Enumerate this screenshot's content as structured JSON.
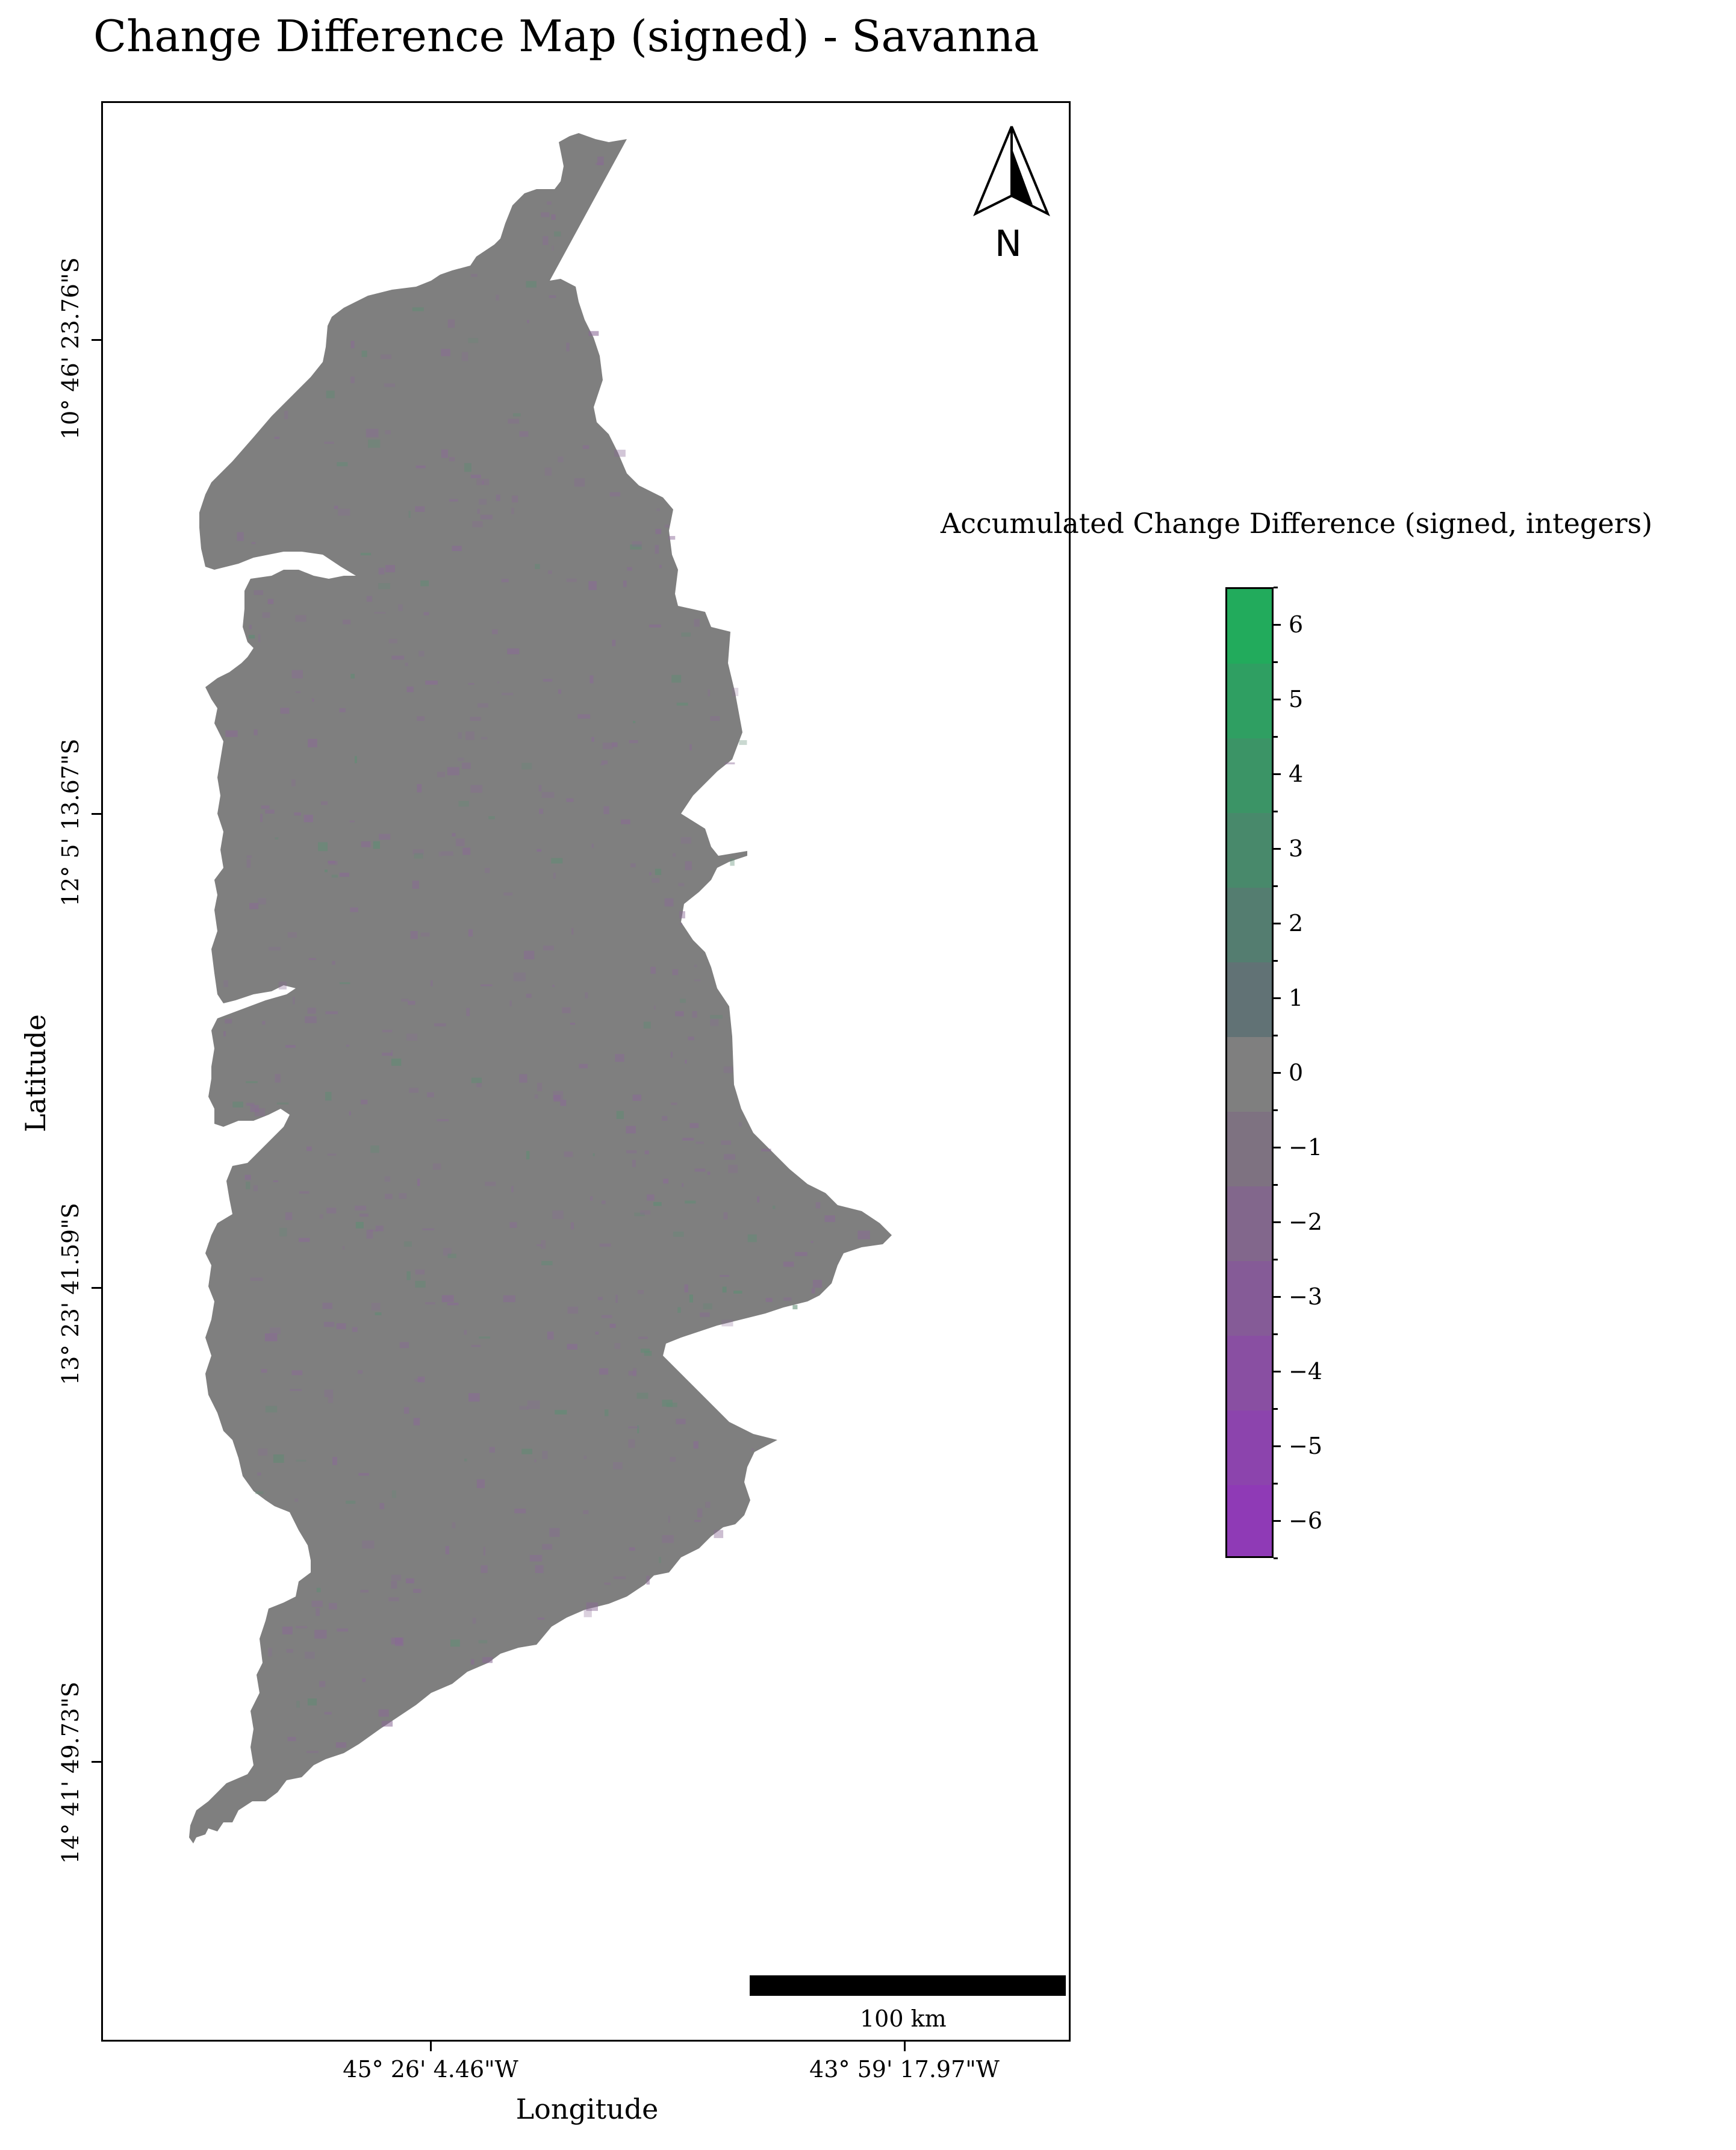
{
  "title": "Change Difference Map (signed) - Savanna",
  "axes": {
    "xlabel": "Longitude",
    "ylabel": "Latitude",
    "xticks": [
      "45° 26' 4.46\"W",
      "43° 59' 17.97\"W"
    ],
    "yticks": [
      "10° 46' 23.76\"S",
      "12° 5' 13.67\"S",
      "13° 23' 41.59\"S",
      "14° 41' 49.73\"S"
    ]
  },
  "north_arrow": {
    "label": "N"
  },
  "scalebar": {
    "label": "100 km"
  },
  "colorbar": {
    "title": "Accumulated Change Difference (signed, integers)",
    "ticks": [
      "6",
      "5",
      "4",
      "3",
      "2",
      "1",
      "0",
      "−1",
      "−2",
      "−3",
      "−4",
      "−5",
      "−6"
    ],
    "range": [
      -6.5,
      6.5
    ],
    "colors": [
      "#22ab5c",
      "#2f9f62",
      "#3b9466",
      "#48896b",
      "#547d70",
      "#617275",
      "#7f7f7f",
      "#7e7281",
      "#82678c",
      "#855b97",
      "#894fa2",
      "#8c44ad",
      "#8f3ab6"
    ]
  },
  "map": {
    "region_color": "#7f7f7f",
    "change_color_negative": "#8a6a96",
    "change_color_positive": "#5e8d73"
  }
}
